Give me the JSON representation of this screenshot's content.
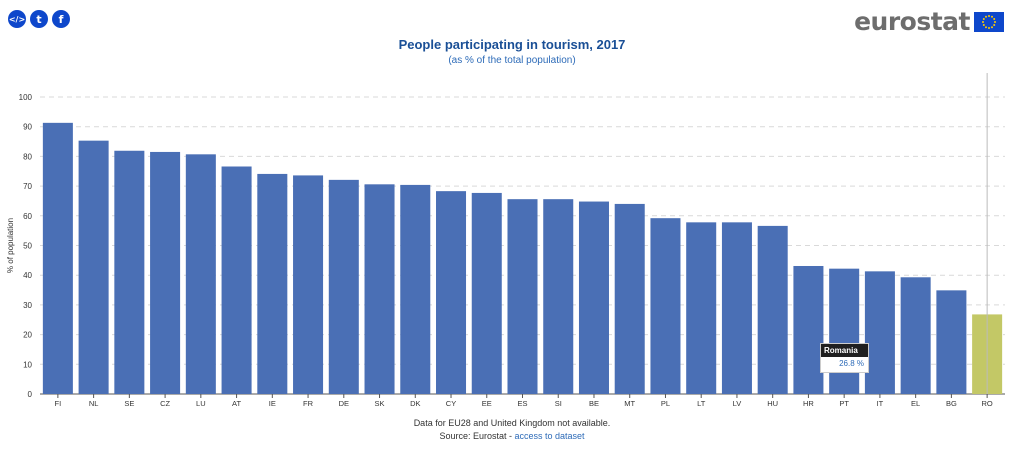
{
  "share": {
    "embed_glyph": "</>",
    "twitter_glyph": "t",
    "facebook_glyph": "f"
  },
  "logo": {
    "text": "eurostat",
    "flag_colors": {
      "blue": "#0e47cb",
      "stars": "#ffcc00"
    }
  },
  "colors": {
    "bar": "#4a6fb5",
    "highlight": "#c3c866",
    "grid": "#d9d9d9",
    "title": "#1a4f96"
  },
  "footer": {
    "note": "Data for EU28 and United Kingdom not available.",
    "source_prefix": "Source: Eurostat - ",
    "link_text": "access to dataset"
  },
  "tooltip": {
    "country": "Romania",
    "value": "26.8 %"
  },
  "chart_data": {
    "type": "bar",
    "title": "People participating in tourism, 2017",
    "subtitle": "(as % of the total population)",
    "xlabel": "",
    "ylabel": "% of population",
    "ylim": [
      0,
      100
    ],
    "yticks": [
      0,
      10,
      20,
      30,
      40,
      50,
      60,
      70,
      80,
      90,
      100
    ],
    "grid": true,
    "categories": [
      "FI",
      "NL",
      "SE",
      "CZ",
      "LU",
      "AT",
      "IE",
      "FR",
      "DE",
      "SK",
      "DK",
      "CY",
      "EE",
      "ES",
      "SI",
      "BE",
      "MT",
      "PL",
      "LT",
      "LV",
      "HU",
      "HR",
      "PT",
      "IT",
      "EL",
      "BG",
      "RO"
    ],
    "values": [
      91.3,
      85.3,
      81.9,
      81.5,
      80.7,
      76.6,
      74.1,
      73.6,
      72.1,
      70.6,
      70.4,
      68.3,
      67.7,
      65.6,
      65.6,
      64.8,
      64.0,
      59.2,
      57.8,
      57.8,
      56.6,
      43.1,
      42.2,
      41.3,
      39.3,
      34.9,
      26.8
    ],
    "highlighted": "RO"
  }
}
